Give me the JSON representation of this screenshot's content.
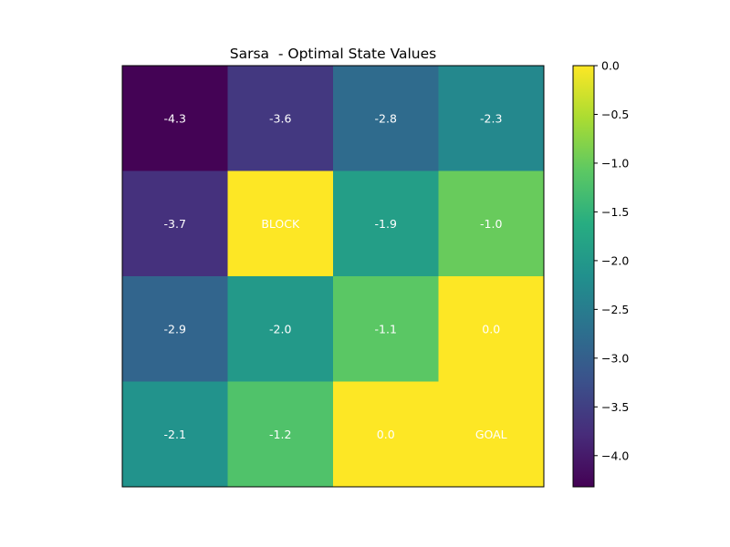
{
  "chart_data": {
    "type": "heatmap",
    "title": "Sarsa  - Optimal State Values",
    "rows": 4,
    "cols": 4,
    "values": [
      [
        -4.3,
        -3.6,
        -2.8,
        -2.3
      ],
      [
        -3.7,
        0.0,
        -1.9,
        -1.0
      ],
      [
        -2.9,
        -2.0,
        -1.1,
        0.0
      ],
      [
        -2.1,
        -1.2,
        0.0,
        0.0
      ]
    ],
    "cell_labels": [
      [
        "-4.3",
        "-3.6",
        "-2.8",
        "-2.3"
      ],
      [
        "-3.7",
        "BLOCK",
        "-1.9",
        "-1.0"
      ],
      [
        "-2.9",
        "-2.0",
        "-1.1",
        "0.0"
      ],
      [
        "-2.1",
        "-1.2",
        "0.0",
        "GOAL"
      ]
    ],
    "colormap": "viridis",
    "color_range": [
      -4.32,
      0.0
    ],
    "colorbar": {
      "ticks": [
        0.0,
        -0.5,
        -1.0,
        -1.5,
        -2.0,
        -2.5,
        -3.0,
        -3.5,
        -4.0
      ],
      "tick_labels": [
        "0.0",
        "−0.5",
        "−1.0",
        "−1.5",
        "−2.0",
        "−2.5",
        "−3.0",
        "−3.5",
        "−4.0"
      ]
    },
    "grid": false,
    "axis_ticks_visible": false,
    "label_color": "#ffffff"
  }
}
